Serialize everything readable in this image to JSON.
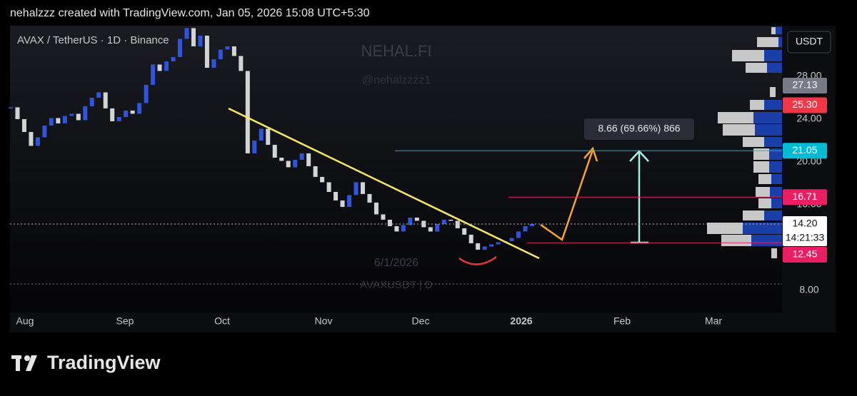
{
  "header": "nehalzzz created with TradingView.com, Jan 05, 2026 15:08 UTC+5:30",
  "symbol": "AVAX / TetherUS · 1D · Binance",
  "watermark": {
    "brand": "NEHAL.FI",
    "handle": "@nehalzzzz1",
    "date": "6/1/2026",
    "ticker": "AVAXUSDT | D"
  },
  "currency": "USDT",
  "price_axis": {
    "ylim": [
      5.93,
      32.73
    ],
    "ticks": [
      {
        "value": 28,
        "label": "28.00"
      },
      {
        "value": 24,
        "label": "24.00"
      },
      {
        "value": 20,
        "label": "20.00"
      },
      {
        "value": 16,
        "label": "16.00"
      },
      {
        "value": 8,
        "label": "8.00"
      }
    ]
  },
  "price_tags": [
    {
      "value": 27.13,
      "label": "27.13",
      "color": "#787b86"
    },
    {
      "value": 25.3,
      "label": "25.30",
      "color": "#f23645"
    },
    {
      "value": 21.05,
      "label": "21.05",
      "color": "#00bcd4"
    },
    {
      "value": 16.71,
      "label": "16.71",
      "color": "#e91e63"
    },
    {
      "value": 14.2,
      "label": "14.20",
      "color": "#ffffff",
      "countdown": "14:21:33"
    },
    {
      "value": 12.45,
      "label": "12.45",
      "color": "#e91e63"
    }
  ],
  "measure": "8.66 (69.66%) 866",
  "time_axis": [
    "Aug",
    "Sep",
    "Oct",
    "Nov",
    "Dec",
    "2026",
    "Feb",
    "Mar"
  ],
  "closes": [
    25.1,
    24.0,
    22.8,
    21.5,
    22.3,
    23.4,
    24.1,
    23.6,
    24.3,
    24.5,
    23.9,
    25.2,
    26.0,
    26.5,
    25.0,
    23.8,
    24.2,
    24.8,
    24.5,
    25.5,
    27.2,
    29.1,
    28.5,
    29.4,
    29.8,
    31.5,
    32.5,
    30.8,
    31.8,
    28.8,
    29.6,
    30.5,
    30.8,
    29.9,
    28.5,
    20.8,
    22.0,
    23.1,
    21.6,
    20.4,
    20.1,
    19.5,
    20.2,
    20.8,
    19.6,
    18.6,
    18.1,
    17.2,
    16.4,
    15.8,
    16.9,
    18.1,
    17.0,
    16.2,
    15.1,
    14.6,
    14.0,
    13.5,
    14.1,
    14.8,
    14.5,
    13.9,
    13.5,
    14.2,
    14.6,
    14.5,
    13.8,
    13.2,
    12.4,
    11.8,
    12.1,
    12.3,
    12.5,
    12.6,
    12.9,
    13.5,
    14.0,
    14.2
  ],
  "footer": "TradingView"
}
